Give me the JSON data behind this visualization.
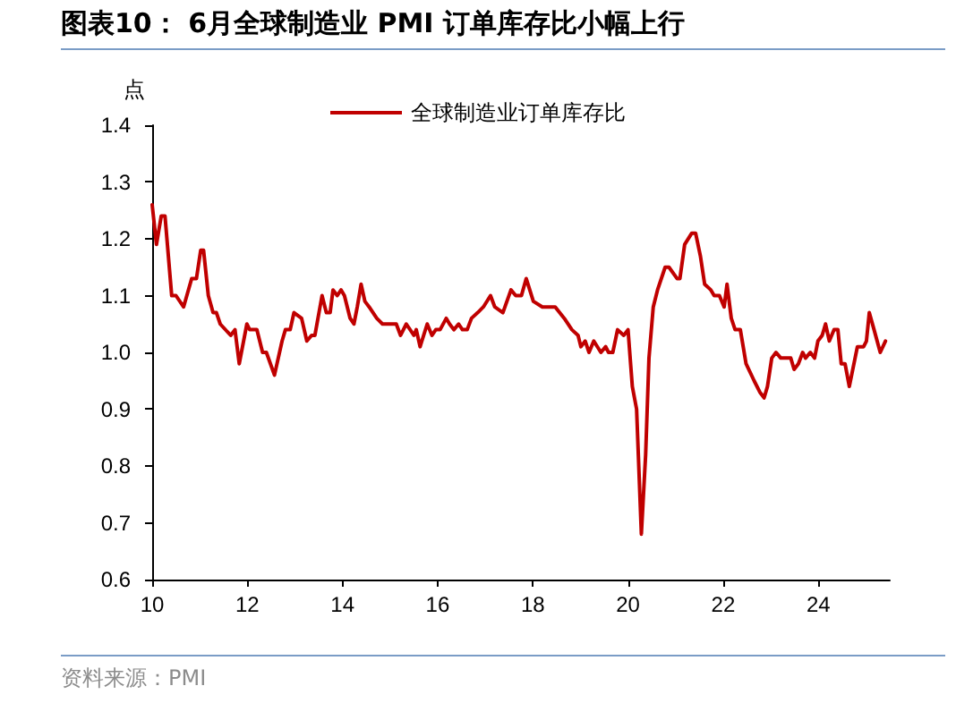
{
  "chart_data": {
    "type": "line",
    "title": "图表10： 6月全球制造业 PMI 订单库存比小幅上行",
    "ylabel": "点",
    "annotations": [
      "资料来源：PMI"
    ],
    "legend": "top",
    "grid": false,
    "marker": "none",
    "line_style": "solid",
    "xlim": [
      10,
      25.5
    ],
    "xticks": [
      10,
      12,
      14,
      16,
      18,
      20,
      22,
      24
    ],
    "ylim": [
      0.6,
      1.4
    ],
    "yticks": [
      {
        "value": 0.6,
        "label": "0.6"
      },
      {
        "value": 0.7,
        "label": "0.7"
      },
      {
        "value": 0.8,
        "label": "0.8"
      },
      {
        "value": 0.9,
        "label": "0.9"
      },
      {
        "value": 1.0,
        "label": "1.0"
      },
      {
        "value": 1.1,
        "label": "1.1"
      },
      {
        "value": 1.2,
        "label": "1.2"
      },
      {
        "value": 1.3,
        "label": "1.3"
      },
      {
        "value": 1.4,
        "label": "1.4"
      }
    ],
    "series": [
      {
        "name": "全球制造业订单库存比",
        "color": "#c00000",
        "x": [
          10.0,
          10.09,
          10.19,
          10.27,
          10.41,
          10.5,
          10.66,
          10.83,
          10.93,
          11.02,
          11.08,
          11.18,
          11.28,
          11.35,
          11.43,
          11.65,
          11.74,
          11.83,
          11.99,
          12.05,
          12.2,
          12.32,
          12.4,
          12.57,
          12.73,
          12.8,
          12.9,
          12.98,
          13.14,
          13.25,
          13.35,
          13.42,
          13.57,
          13.66,
          13.74,
          13.8,
          13.89,
          13.97,
          14.04,
          14.16,
          14.24,
          14.31,
          14.39,
          14.47,
          14.56,
          14.72,
          14.84,
          15.03,
          15.13,
          15.22,
          15.34,
          15.5,
          15.55,
          15.63,
          15.78,
          15.88,
          15.96,
          16.05,
          16.18,
          16.25,
          16.34,
          16.44,
          16.52,
          16.62,
          16.71,
          16.84,
          16.96,
          17.11,
          17.2,
          17.37,
          17.54,
          17.64,
          17.76,
          17.86,
          18.01,
          18.2,
          18.39,
          18.47,
          18.66,
          18.82,
          18.95,
          19.01,
          19.1,
          19.18,
          19.28,
          19.43,
          19.53,
          19.59,
          19.68,
          19.78,
          19.91,
          20.0,
          20.09,
          20.18,
          20.28,
          20.37,
          20.44,
          20.53,
          20.62,
          20.78,
          20.86,
          21.03,
          21.09,
          21.19,
          21.34,
          21.42,
          21.52,
          21.61,
          21.74,
          21.81,
          21.92,
          22.02,
          22.08,
          22.17,
          22.25,
          22.36,
          22.48,
          22.65,
          22.77,
          22.86,
          22.93,
          23.02,
          23.11,
          23.21,
          23.33,
          23.42,
          23.49,
          23.58,
          23.67,
          23.73,
          23.83,
          23.92,
          23.99,
          24.08,
          24.15,
          24.23,
          24.33,
          24.41,
          24.48,
          24.56,
          24.65,
          24.82,
          24.95,
          25.01,
          25.07,
          25.17,
          25.3,
          25.41
        ],
        "values": [
          1.26,
          1.19,
          1.24,
          1.24,
          1.1,
          1.1,
          1.08,
          1.13,
          1.13,
          1.18,
          1.18,
          1.1,
          1.07,
          1.07,
          1.05,
          1.03,
          1.04,
          0.98,
          1.05,
          1.04,
          1.04,
          1.0,
          1.0,
          0.96,
          1.02,
          1.04,
          1.04,
          1.07,
          1.06,
          1.02,
          1.03,
          1.03,
          1.1,
          1.07,
          1.07,
          1.11,
          1.1,
          1.11,
          1.1,
          1.06,
          1.05,
          1.08,
          1.12,
          1.09,
          1.08,
          1.06,
          1.05,
          1.05,
          1.05,
          1.03,
          1.05,
          1.03,
          1.04,
          1.01,
          1.05,
          1.03,
          1.04,
          1.04,
          1.06,
          1.05,
          1.04,
          1.05,
          1.04,
          1.04,
          1.06,
          1.07,
          1.08,
          1.1,
          1.08,
          1.07,
          1.11,
          1.1,
          1.1,
          1.13,
          1.09,
          1.08,
          1.08,
          1.08,
          1.06,
          1.04,
          1.03,
          1.01,
          1.02,
          1.0,
          1.02,
          1.0,
          1.01,
          1.0,
          1.0,
          1.04,
          1.03,
          1.04,
          0.94,
          0.9,
          0.68,
          0.82,
          0.99,
          1.08,
          1.11,
          1.15,
          1.15,
          1.13,
          1.13,
          1.19,
          1.21,
          1.21,
          1.17,
          1.12,
          1.11,
          1.1,
          1.1,
          1.08,
          1.12,
          1.06,
          1.04,
          1.04,
          0.98,
          0.95,
          0.93,
          0.92,
          0.94,
          0.99,
          1.0,
          0.99,
          0.99,
          0.99,
          0.97,
          0.98,
          1.0,
          0.99,
          1.0,
          0.99,
          1.02,
          1.03,
          1.05,
          1.02,
          1.04,
          1.04,
          0.98,
          0.98,
          0.94,
          1.01,
          1.01,
          1.02,
          1.07,
          1.04,
          1.0,
          1.02
        ]
      }
    ]
  }
}
